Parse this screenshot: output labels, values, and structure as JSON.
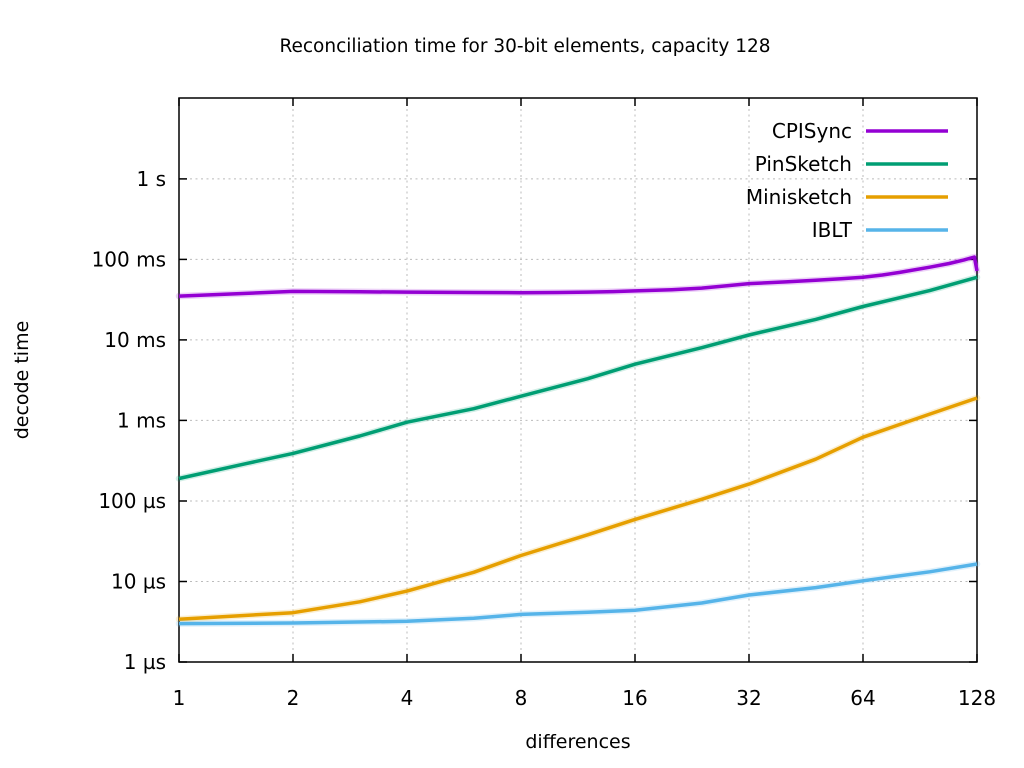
{
  "chart_data": {
    "type": "line",
    "title": "Reconciliation time for 30-bit elements, capacity 128",
    "xlabel": "differences",
    "ylabel": "decode time",
    "x_scale": "log2",
    "y_scale": "log10",
    "xlim": [
      1,
      128
    ],
    "ylim": [
      1e-06,
      10.1
    ],
    "grid": true,
    "legend_position": "top-right-inside",
    "x_ticks": [
      {
        "v": 1,
        "label": "1"
      },
      {
        "v": 2,
        "label": "2"
      },
      {
        "v": 4,
        "label": "4"
      },
      {
        "v": 8,
        "label": "8"
      },
      {
        "v": 16,
        "label": "16"
      },
      {
        "v": 32,
        "label": "32"
      },
      {
        "v": 64,
        "label": "64"
      },
      {
        "v": 128,
        "label": "128"
      }
    ],
    "y_ticks": [
      {
        "v": 1e-06,
        "label": "1 µs"
      },
      {
        "v": 1e-05,
        "label": "10 µs"
      },
      {
        "v": 0.0001,
        "label": "100 µs"
      },
      {
        "v": 0.001,
        "label": "1 ms"
      },
      {
        "v": 0.01,
        "label": "10 ms"
      },
      {
        "v": 0.1,
        "label": "100 ms"
      },
      {
        "v": 1,
        "label": "1 s"
      }
    ],
    "series": [
      {
        "name": "CPISync",
        "color": "#9400d3",
        "points": [
          [
            1,
            0.035
          ],
          [
            2,
            0.04
          ],
          [
            3,
            0.0396
          ],
          [
            4,
            0.0392
          ],
          [
            6,
            0.0388
          ],
          [
            8,
            0.0386
          ],
          [
            10,
            0.0388
          ],
          [
            12,
            0.0392
          ],
          [
            14,
            0.0398
          ],
          [
            16,
            0.0406
          ],
          [
            20,
            0.042
          ],
          [
            24,
            0.044
          ],
          [
            28,
            0.047
          ],
          [
            32,
            0.05
          ],
          [
            40,
            0.0525
          ],
          [
            48,
            0.055
          ],
          [
            56,
            0.0575
          ],
          [
            64,
            0.06
          ],
          [
            72,
            0.064
          ],
          [
            80,
            0.069
          ],
          [
            96,
            0.08
          ],
          [
            108,
            0.089
          ],
          [
            118,
            0.098
          ],
          [
            126,
            0.107
          ],
          [
            128,
            0.072
          ]
        ]
      },
      {
        "name": "PinSketch",
        "color": "#009e73",
        "points": [
          [
            1,
            0.00019
          ],
          [
            1.5,
            0.00029
          ],
          [
            2,
            0.00039
          ],
          [
            3,
            0.00064
          ],
          [
            4,
            0.00095
          ],
          [
            6,
            0.0014
          ],
          [
            8,
            0.002
          ],
          [
            12,
            0.0033
          ],
          [
            16,
            0.005
          ],
          [
            24,
            0.008
          ],
          [
            32,
            0.0115
          ],
          [
            48,
            0.018
          ],
          [
            64,
            0.026
          ],
          [
            96,
            0.041
          ],
          [
            128,
            0.06
          ]
        ]
      },
      {
        "name": "Minisketch",
        "color": "#e69f00",
        "points": [
          [
            1,
            3.4e-06
          ],
          [
            2,
            4.1e-06
          ],
          [
            3,
            5.6e-06
          ],
          [
            4,
            7.6e-06
          ],
          [
            6,
            1.3e-05
          ],
          [
            8,
            2.1e-05
          ],
          [
            12,
            3.8e-05
          ],
          [
            16,
            5.9e-05
          ],
          [
            24,
            0.000105
          ],
          [
            32,
            0.000162
          ],
          [
            48,
            0.00033
          ],
          [
            64,
            0.00062
          ],
          [
            96,
            0.0012
          ],
          [
            128,
            0.0019
          ]
        ]
      },
      {
        "name": "IBLT",
        "color": "#56b4e9",
        "points": [
          [
            1,
            3e-06
          ],
          [
            2,
            3.05e-06
          ],
          [
            4,
            3.2e-06
          ],
          [
            6,
            3.5e-06
          ],
          [
            8,
            3.9e-06
          ],
          [
            12,
            4.15e-06
          ],
          [
            16,
            4.4e-06
          ],
          [
            24,
            5.4e-06
          ],
          [
            32,
            6.8e-06
          ],
          [
            48,
            8.4e-06
          ],
          [
            64,
            1.02e-05
          ],
          [
            96,
            1.32e-05
          ],
          [
            128,
            1.65e-05
          ]
        ]
      }
    ],
    "colors": {
      "border": "#000000",
      "grid": "#bbbbbb",
      "text": "#000000",
      "background": "#ffffff"
    }
  }
}
